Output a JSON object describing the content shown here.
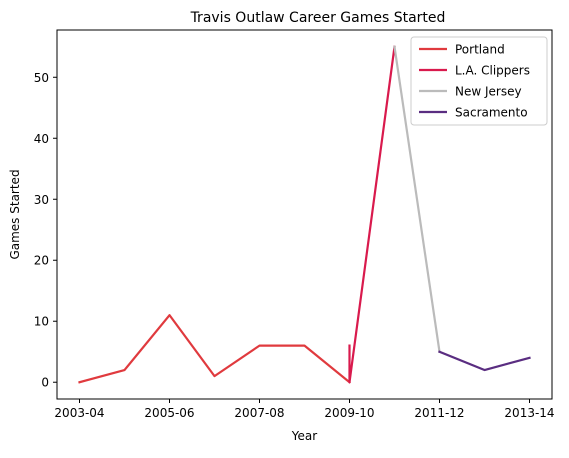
{
  "chart_data": {
    "type": "line",
    "title": "Travis Outlaw Career Games Started",
    "xlabel": "Year",
    "ylabel": "Games Started",
    "x_tick_labels": [
      "2003-04",
      "2005-06",
      "2007-08",
      "2009-10",
      "2011-12",
      "2013-14"
    ],
    "y_ticks": [
      0,
      10,
      20,
      30,
      40,
      50
    ],
    "ylim": [
      -2.75,
      57.75
    ],
    "legend_position": "top-right",
    "grid": false,
    "series": [
      {
        "name": "Portland",
        "color": "#e03a3e",
        "points": [
          {
            "x": "2003-04",
            "y": 0
          },
          {
            "x": "2004-05",
            "y": 2
          },
          {
            "x": "2005-06",
            "y": 11
          },
          {
            "x": "2006-07",
            "y": 1
          },
          {
            "x": "2007-08",
            "y": 6
          },
          {
            "x": "2008-09",
            "y": 6
          },
          {
            "x": "2009-10",
            "y": 0
          }
        ]
      },
      {
        "name": "L.A. Clippers",
        "color": "#d91a4d",
        "points": [
          {
            "x": "2009-10",
            "y": 6
          },
          {
            "x": "2009-10",
            "y": 0
          },
          {
            "x": "2010-11",
            "y": 55
          }
        ]
      },
      {
        "name": "New Jersey",
        "color": "#bbbbbb",
        "points": [
          {
            "x": "2010-11",
            "y": 55
          },
          {
            "x": "2011-12",
            "y": 5
          }
        ]
      },
      {
        "name": "Sacramento",
        "color": "#5a2d81",
        "points": [
          {
            "x": "2011-12",
            "y": 5
          },
          {
            "x": "2012-13",
            "y": 2
          },
          {
            "x": "2013-14",
            "y": 4
          }
        ]
      }
    ],
    "seasons": [
      "2003-04",
      "2004-05",
      "2005-06",
      "2006-07",
      "2007-08",
      "2008-09",
      "2009-10",
      "2010-11",
      "2011-12",
      "2012-13",
      "2013-14"
    ]
  }
}
